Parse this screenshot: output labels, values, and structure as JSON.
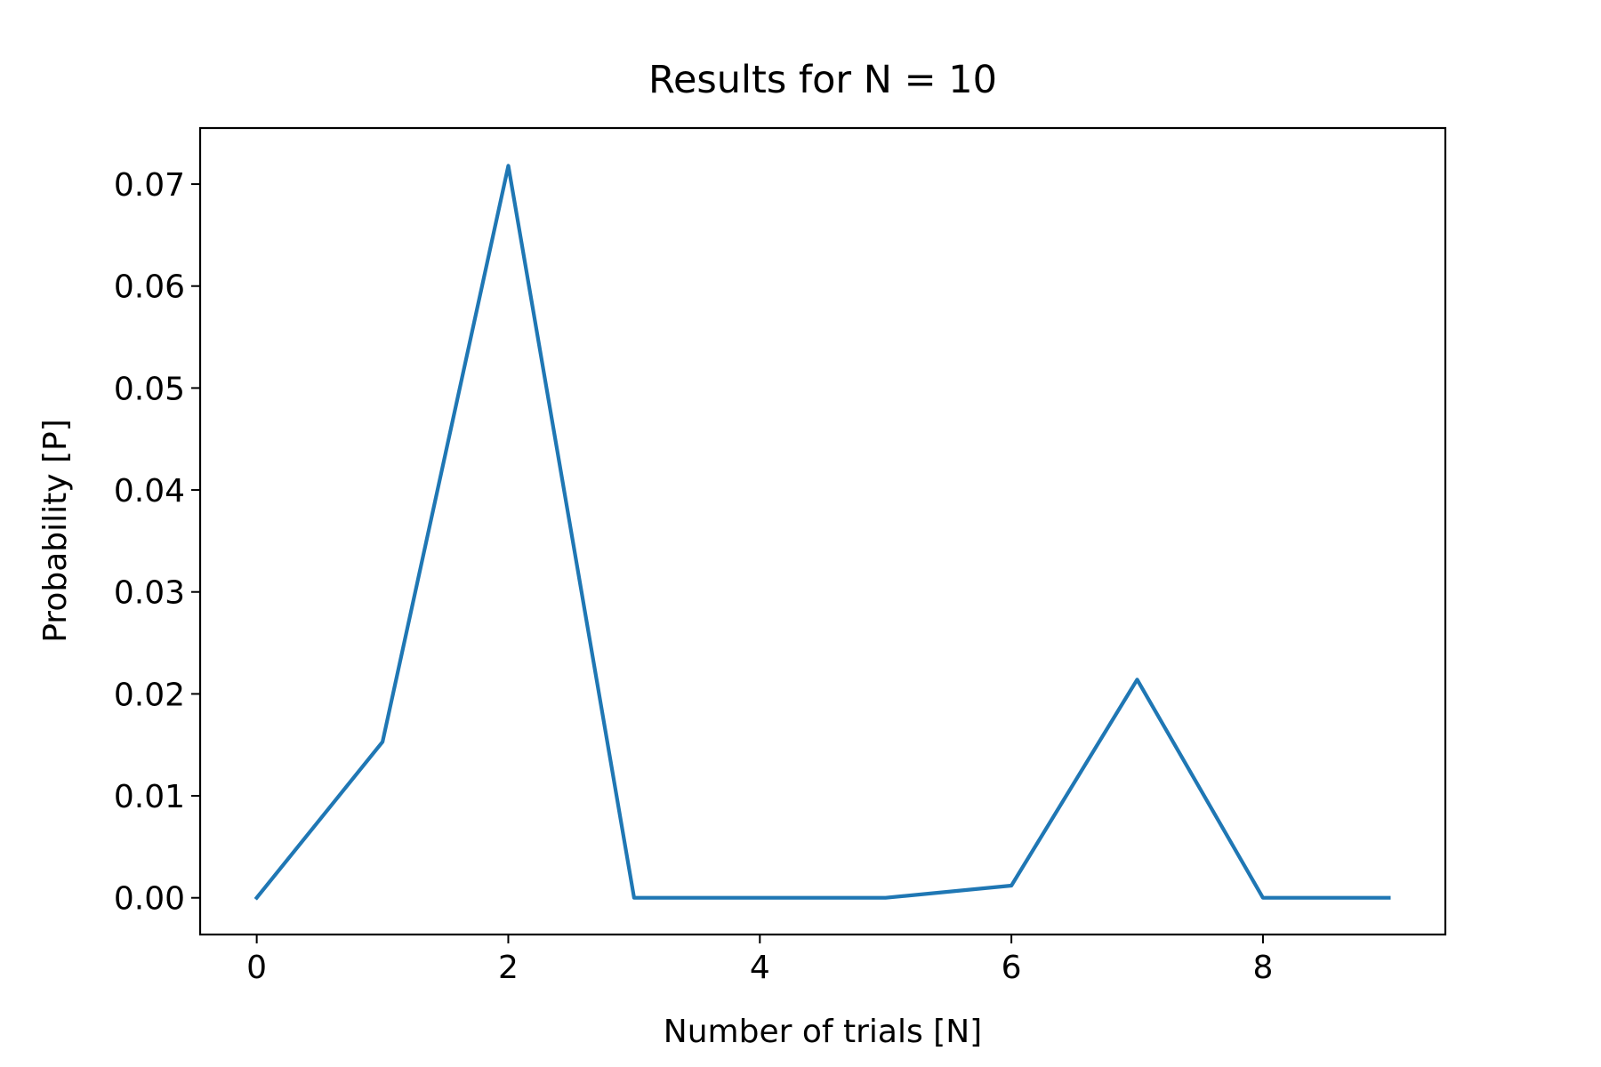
{
  "chart_data": {
    "type": "line",
    "title": "Results for N = 10",
    "xlabel": "Number of trials [N]",
    "ylabel": "Probability [P]",
    "xlim": [
      -0.45,
      9.45
    ],
    "ylim": [
      -0.0036,
      0.0755
    ],
    "x_ticks": [
      0,
      2,
      4,
      6,
      8
    ],
    "y_ticks": [
      0.0,
      0.01,
      0.02,
      0.03,
      0.04,
      0.05,
      0.06,
      0.07
    ],
    "x_tick_labels": [
      "0",
      "2",
      "4",
      "6",
      "8"
    ],
    "y_tick_labels": [
      "0.00",
      "0.01",
      "0.02",
      "0.03",
      "0.04",
      "0.05",
      "0.06",
      "0.07"
    ],
    "grid": false,
    "series": [
      {
        "color": "#1f77b4",
        "x": [
          0,
          1,
          2,
          3,
          4,
          5,
          6,
          7,
          8,
          9
        ],
        "y": [
          0.0,
          0.0153,
          0.0718,
          0.0,
          0.0,
          0.0,
          0.0012,
          0.0214,
          0.0,
          0.0
        ]
      }
    ]
  }
}
